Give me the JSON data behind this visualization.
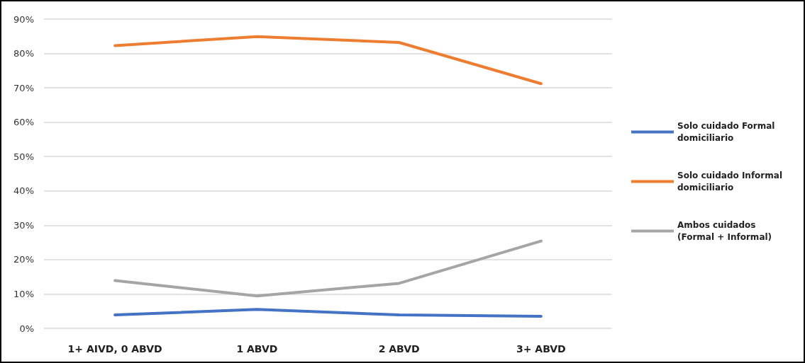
{
  "chart_data": {
    "type": "line",
    "categories": [
      "1+ AIVD, 0 ABVD",
      "1 ABVD",
      "2 ABVD",
      "3+ ABVD"
    ],
    "series": [
      {
        "name": "Solo cuidado Formal domiciliario",
        "color": "#4472c4",
        "values": [
          3.9,
          5.5,
          3.9,
          3.5
        ]
      },
      {
        "name": "Solo cuidado Informal domiciliario",
        "color": "#ed7d31",
        "values": [
          82.3,
          84.9,
          83.2,
          71.2
        ]
      },
      {
        "name": "Ambos cuidados (Formal + Informal)",
        "color": "#a5a5a5",
        "values": [
          13.9,
          9.4,
          13.1,
          25.4
        ]
      }
    ],
    "ylim": [
      0,
      90
    ],
    "yticks": [
      {
        "value": 0,
        "label": "0%"
      },
      {
        "value": 10,
        "label": "10%"
      },
      {
        "value": 20,
        "label": "20%"
      },
      {
        "value": 30,
        "label": "30%"
      },
      {
        "value": 40,
        "label": "40%"
      },
      {
        "value": 50,
        "label": "50%"
      },
      {
        "value": 60,
        "label": "60%"
      },
      {
        "value": 70,
        "label": "70%"
      },
      {
        "value": 80,
        "label": "80%"
      },
      {
        "value": 90,
        "label": "90%"
      }
    ],
    "grid": "y",
    "legend": "right",
    "marker": "none",
    "line_style": "solid"
  }
}
